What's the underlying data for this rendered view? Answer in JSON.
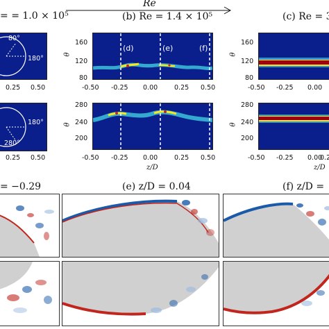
{
  "header": {
    "re_label": "Re",
    "panel_a_title_visible": "= 1.0 × 10⁵",
    "panel_b_title": "(b) Re = 1.4 × 10⁵",
    "panel_c_title_visible": "(c) Re = 3"
  },
  "panel_a": {
    "inset_top_labels": [
      "80°",
      "180°"
    ],
    "inset_bottom_labels": [
      "180°",
      "280°"
    ],
    "x_ticks_visible": [
      "0.25",
      "0.50"
    ]
  },
  "panel_b": {
    "markers": [
      "(d)",
      "(e)",
      "(f)"
    ],
    "top_y_ticks": [
      "160",
      "120",
      "80"
    ],
    "bottom_y_ticks": [
      "280",
      "240",
      "200"
    ],
    "y_label": "θ",
    "x_ticks": [
      "-0.50",
      "-0.25",
      "0.00",
      "0.25",
      "0.50"
    ],
    "x_label": "z/D"
  },
  "panel_c": {
    "top_y_ticks": [
      "160",
      "120",
      "80"
    ],
    "bottom_y_ticks": [
      "280",
      "240",
      "200"
    ],
    "y_label": "θ",
    "x_ticks": [
      "-0.50",
      "-0.25",
      "0.00",
      "0.2"
    ],
    "x_label": "z/D"
  },
  "lower_titles": {
    "d_visible": "= −0.29",
    "e": "(e) z/D = 0.04",
    "f_visible": "(f) z/D ="
  },
  "colors": {
    "heatmap_background": "#0a1e8c",
    "band_red": "#a00010",
    "band_yellow": "#f7e81c",
    "vorticity_blue": "#1a5aa8",
    "vorticity_red": "#c0251e",
    "cylinder_gray": "#d0d0d0"
  },
  "chart_data": {
    "type": "heatmap",
    "x_axis": {
      "label": "z/D",
      "range": [
        -0.5,
        0.5
      ],
      "ticks": [
        -0.5,
        -0.25,
        0.0,
        0.25,
        0.5
      ]
    },
    "y_axis": {
      "label": "θ"
    },
    "panels": [
      {
        "panel": "b-top",
        "y_ticks": [
          160,
          120,
          80
        ],
        "band_theta_approx": 105
      },
      {
        "panel": "b-bottom",
        "y_ticks": [
          280,
          240,
          200
        ],
        "band_theta_approx": 248
      },
      {
        "panel": "c-top",
        "y_ticks": [
          160,
          120,
          80
        ],
        "band_theta_approx": 110
      },
      {
        "panel": "c-bottom",
        "y_ticks": [
          280,
          240,
          200
        ],
        "band_theta_approx": 246
      }
    ],
    "markers_z": [
      {
        "label": "(d)",
        "z": -0.29
      },
      {
        "label": "(e)",
        "z": 0.04
      },
      {
        "label": "(f)",
        "z": 0.47
      }
    ]
  }
}
